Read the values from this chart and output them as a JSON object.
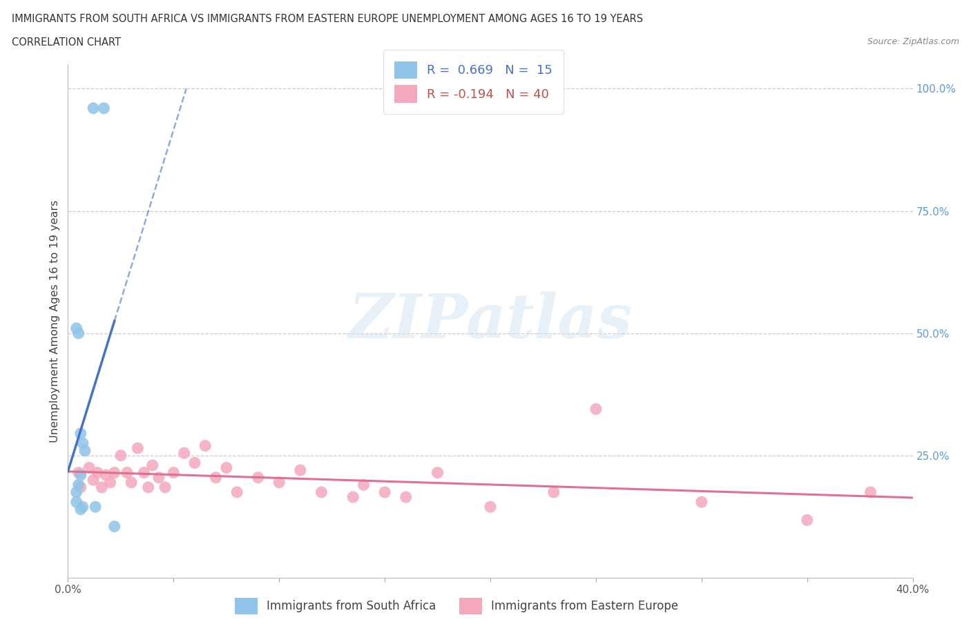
{
  "title_line1": "IMMIGRANTS FROM SOUTH AFRICA VS IMMIGRANTS FROM EASTERN EUROPE UNEMPLOYMENT AMONG AGES 16 TO 19 YEARS",
  "title_line2": "CORRELATION CHART",
  "source": "Source: ZipAtlas.com",
  "ylabel": "Unemployment Among Ages 16 to 19 years",
  "xlim": [
    0.0,
    0.4
  ],
  "ylim": [
    0.0,
    1.05
  ],
  "series1_label": "Immigrants from South Africa",
  "series1_color": "#90C4E8",
  "series1_R": "0.669",
  "series1_N": "15",
  "series1_x": [
    0.012,
    0.017,
    0.004,
    0.005,
    0.006,
    0.007,
    0.008,
    0.006,
    0.005,
    0.004,
    0.004,
    0.006,
    0.007,
    0.013,
    0.022
  ],
  "series1_y": [
    0.96,
    0.96,
    0.51,
    0.5,
    0.295,
    0.275,
    0.26,
    0.21,
    0.19,
    0.175,
    0.155,
    0.14,
    0.145,
    0.145,
    0.105
  ],
  "series2_label": "Immigrants from Eastern Europe",
  "series2_color": "#F5A8BC",
  "series2_R": "-0.194",
  "series2_N": "40",
  "series2_x": [
    0.005,
    0.006,
    0.01,
    0.012,
    0.014,
    0.016,
    0.018,
    0.02,
    0.022,
    0.025,
    0.028,
    0.03,
    0.033,
    0.036,
    0.038,
    0.04,
    0.043,
    0.046,
    0.05,
    0.055,
    0.06,
    0.065,
    0.07,
    0.075,
    0.08,
    0.09,
    0.1,
    0.11,
    0.12,
    0.135,
    0.14,
    0.15,
    0.16,
    0.175,
    0.2,
    0.23,
    0.25,
    0.3,
    0.35,
    0.38
  ],
  "series2_y": [
    0.215,
    0.185,
    0.225,
    0.2,
    0.215,
    0.185,
    0.21,
    0.195,
    0.215,
    0.25,
    0.215,
    0.195,
    0.265,
    0.215,
    0.185,
    0.23,
    0.205,
    0.185,
    0.215,
    0.255,
    0.235,
    0.27,
    0.205,
    0.225,
    0.175,
    0.205,
    0.195,
    0.22,
    0.175,
    0.165,
    0.19,
    0.175,
    0.165,
    0.215,
    0.145,
    0.175,
    0.345,
    0.155,
    0.118,
    0.175
  ],
  "legend_R1_color": "#4472C4",
  "legend_R2_color": "#C0504D",
  "series1_trend_color": "#4472C4",
  "series2_trend_color": "#E07090",
  "background_color": "#FFFFFF",
  "grid_color": "#CCCCCC",
  "ytick_color": "#5B9BD5",
  "xtick_color": "#555555"
}
